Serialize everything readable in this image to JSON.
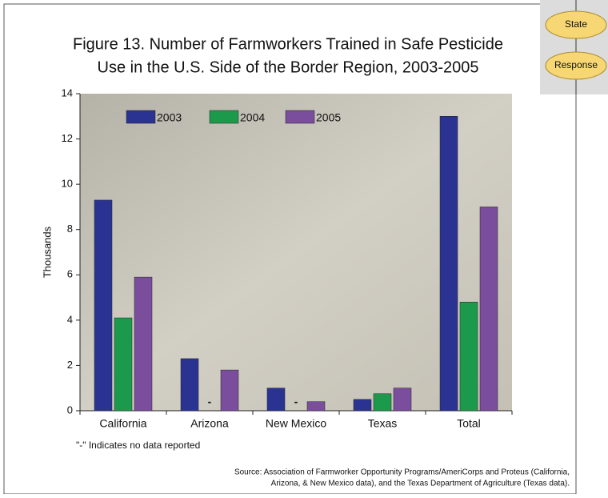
{
  "badges": [
    "State",
    "Response"
  ],
  "chart_data": {
    "type": "bar",
    "title": [
      "Figure 13.  Number of Farmworkers Trained in Safe Pesticide",
      "Use in the U.S. Side of the Border Region, 2003-2005"
    ],
    "y_label": "Thousands",
    "categories": [
      "California",
      "Arizona",
      "New Mexico",
      "Texas",
      "Total"
    ],
    "series": [
      {
        "name": "2003",
        "color": "#2b3392",
        "values": [
          9.3,
          2.3,
          1.0,
          0.5,
          13.0
        ]
      },
      {
        "name": "2004",
        "color": "#1c9a4c",
        "values": [
          4.1,
          null,
          null,
          0.75,
          4.8
        ],
        "value_labels": [
          null,
          "-",
          "-",
          null,
          null
        ]
      },
      {
        "name": "2005",
        "color": "#7a4e9c",
        "values": [
          5.9,
          1.8,
          0.4,
          1.0,
          9.0
        ]
      }
    ],
    "ylim": [
      0,
      14
    ],
    "yticks": [
      0,
      2,
      4,
      6,
      8,
      10,
      12,
      14
    ],
    "legend": "top-left",
    "note": "\"-\" Indicates no data reported",
    "source": [
      "Source: Association of Farmworker Opportunity Programs/AmeriCorps and Proteus (California,",
      "Arizona, & New Mexico data), and the Texas Department of Agriculture (Texas data)."
    ]
  }
}
